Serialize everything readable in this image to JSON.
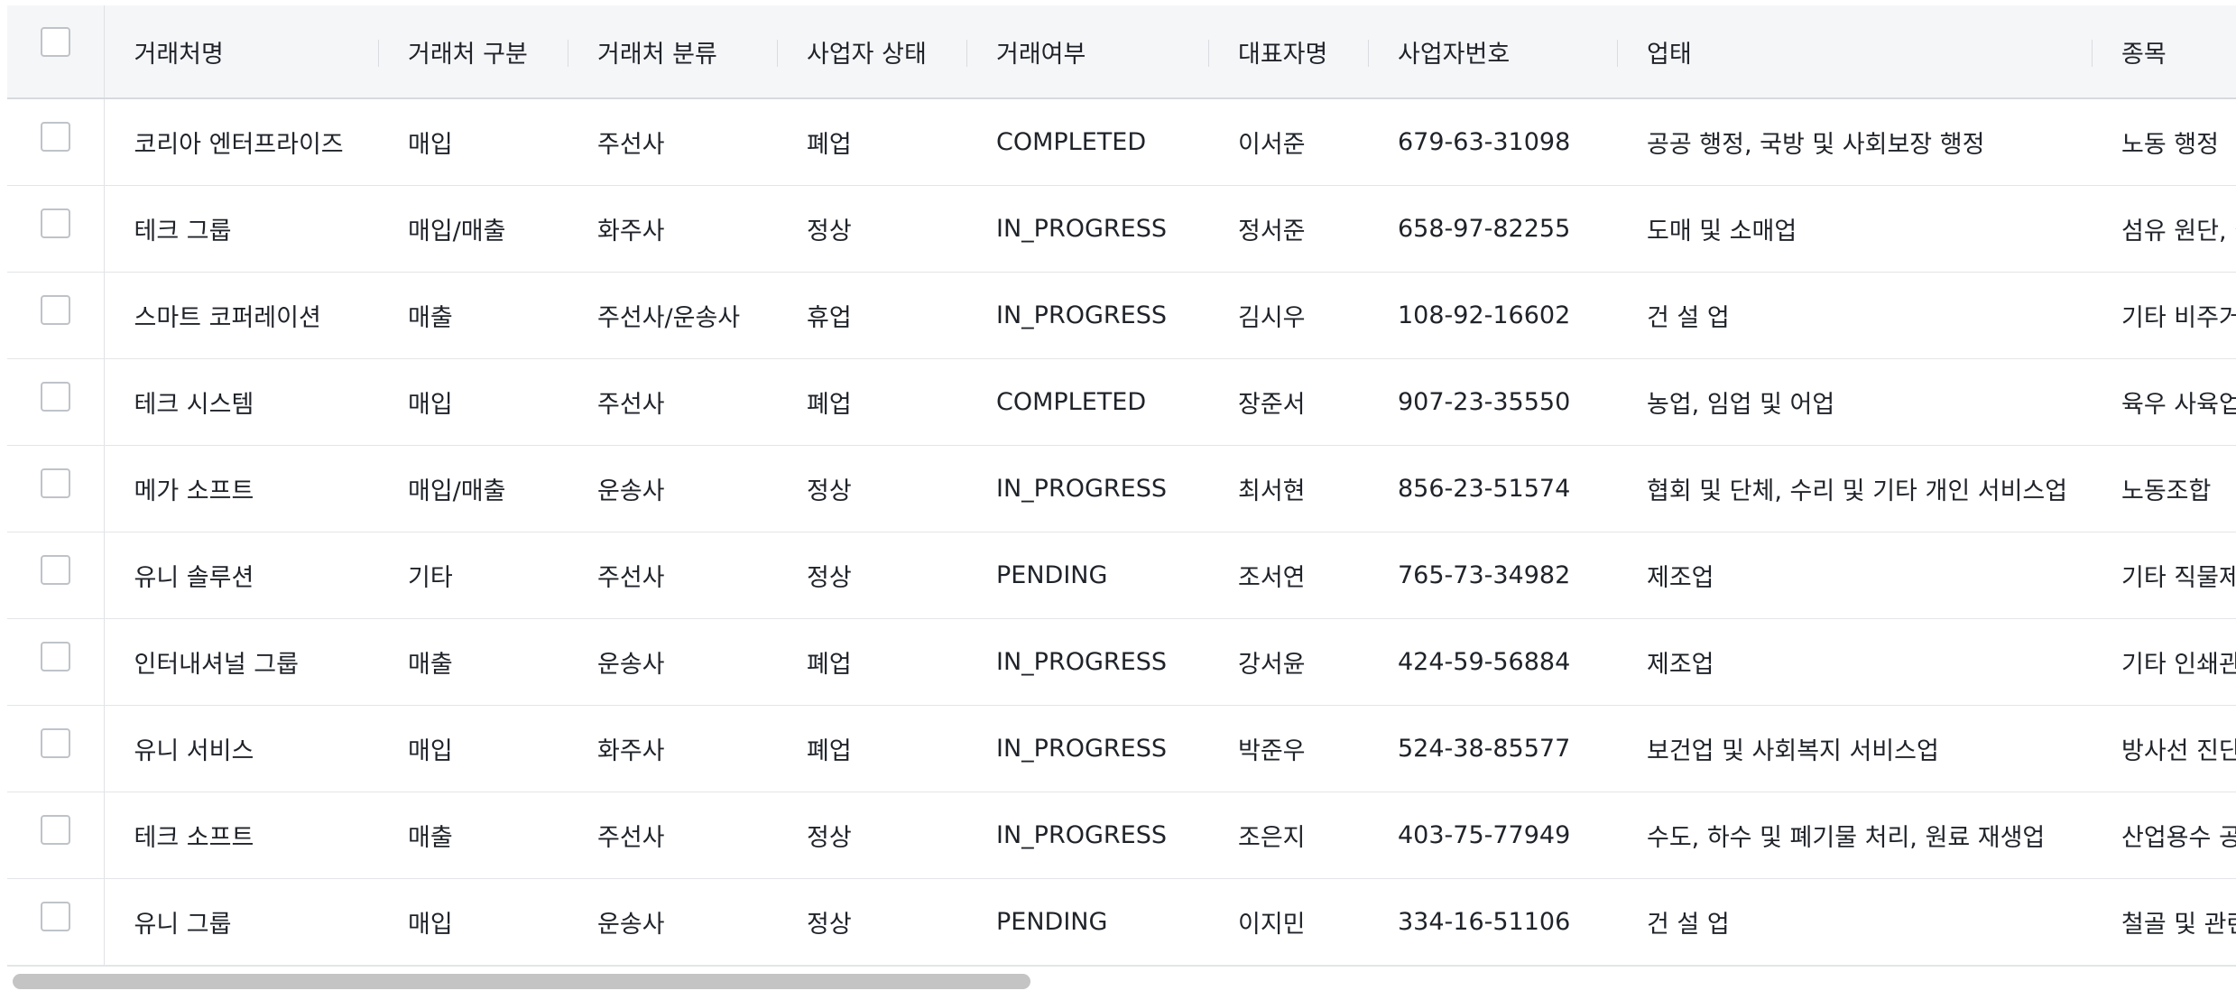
{
  "columns": [
    {
      "key": "name",
      "label": "거래처명"
    },
    {
      "key": "type",
      "label": "거래처 구분"
    },
    {
      "key": "class",
      "label": "거래처 분류"
    },
    {
      "key": "status",
      "label": "사업자 상태"
    },
    {
      "key": "deal",
      "label": "거래여부"
    },
    {
      "key": "ceo",
      "label": "대표자명"
    },
    {
      "key": "bizno",
      "label": "사업자번호"
    },
    {
      "key": "industry",
      "label": "업태"
    },
    {
      "key": "item",
      "label": "종목"
    }
  ],
  "rows": [
    {
      "name": "코리아 엔터프라이즈",
      "type": "매입",
      "class": "주선사",
      "status": "폐업",
      "deal": "COMPLETED",
      "ceo": "이서준",
      "bizno": "679-63-31098",
      "industry": "공공 행정, 국방 및 사회보장 행정",
      "item": "노동 행정"
    },
    {
      "name": "테크 그룹",
      "type": "매입/매출",
      "class": "화주사",
      "status": "정상",
      "deal": "IN_PROGRESS",
      "ceo": "정서준",
      "bizno": "658-97-82255",
      "industry": "도매 및 소매업",
      "item": "섬유 원단, 실"
    },
    {
      "name": "스마트 코퍼레이션",
      "type": "매출",
      "class": "주선사/운송사",
      "status": "휴업",
      "deal": "IN_PROGRESS",
      "ceo": "김시우",
      "bizno": "108-92-16602",
      "industry": "건 설 업",
      "item": "기타 비주거"
    },
    {
      "name": "테크 시스템",
      "type": "매입",
      "class": "주선사",
      "status": "폐업",
      "deal": "COMPLETED",
      "ceo": "장준서",
      "bizno": "907-23-35550",
      "industry": "농업, 임업 및 어업",
      "item": "육우 사육업"
    },
    {
      "name": "메가 소프트",
      "type": "매입/매출",
      "class": "운송사",
      "status": "정상",
      "deal": "IN_PROGRESS",
      "ceo": "최서현",
      "bizno": "856-23-51574",
      "industry": "협회 및 단체, 수리 및 기타 개인 서비스업",
      "item": "노동조합"
    },
    {
      "name": "유니 솔루션",
      "type": "기타",
      "class": "주선사",
      "status": "정상",
      "deal": "PENDING",
      "ceo": "조서연",
      "bizno": "765-73-34982",
      "industry": "제조업",
      "item": "기타 직물제"
    },
    {
      "name": "인터내셔널 그룹",
      "type": "매출",
      "class": "운송사",
      "status": "폐업",
      "deal": "IN_PROGRESS",
      "ceo": "강서윤",
      "bizno": "424-59-56884",
      "industry": "제조업",
      "item": "기타 인쇄관"
    },
    {
      "name": "유니 서비스",
      "type": "매입",
      "class": "화주사",
      "status": "폐업",
      "deal": "IN_PROGRESS",
      "ceo": "박준우",
      "bizno": "524-38-85577",
      "industry": "보건업 및 사회복지 서비스업",
      "item": "방사선 진단"
    },
    {
      "name": "테크 소프트",
      "type": "매출",
      "class": "주선사",
      "status": "정상",
      "deal": "IN_PROGRESS",
      "ceo": "조은지",
      "bizno": "403-75-77949",
      "industry": "수도, 하수 및 폐기물 처리, 원료 재생업",
      "item": "산업용수 공"
    },
    {
      "name": "유니 그룹",
      "type": "매입",
      "class": "운송사",
      "status": "정상",
      "deal": "PENDING",
      "ceo": "이지민",
      "bizno": "334-16-51106",
      "industry": "건 설 업",
      "item": "철골 및 관련"
    }
  ]
}
